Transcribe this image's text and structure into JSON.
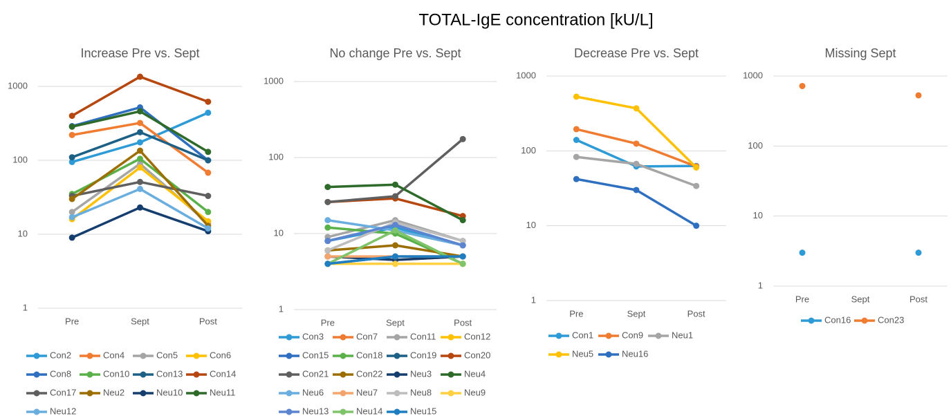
{
  "title": "TOTAL-IgE concentration [kU/L]",
  "chart_data": [
    {
      "type": "line",
      "title": "Increase Pre vs. Sept",
      "categories": [
        "Pre",
        "Sept",
        "Post"
      ],
      "log_scale": true,
      "grid": true,
      "legend": "bottom",
      "ylim": [
        1,
        1000
      ],
      "yticks": [
        1,
        10,
        100,
        1000
      ],
      "series": [
        {
          "name": "Con2",
          "color": "#2e9bd6",
          "values": [
            95,
            175,
            440
          ]
        },
        {
          "name": "Con4",
          "color": "#f07c32",
          "values": [
            220,
            320,
            68
          ]
        },
        {
          "name": "Con5",
          "color": "#a5a5a5",
          "values": [
            20,
            90,
            14
          ]
        },
        {
          "name": "Con6",
          "color": "#ffc000",
          "values": [
            16,
            80,
            15
          ]
        },
        {
          "name": "Con8",
          "color": "#2f6fbf",
          "values": [
            290,
            520,
            100
          ]
        },
        {
          "name": "Con10",
          "color": "#5ab14a",
          "values": [
            35,
            105,
            20
          ]
        },
        {
          "name": "Con13",
          "color": "#1d6086",
          "values": [
            110,
            240,
            100
          ]
        },
        {
          "name": "Con14",
          "color": "#b5470f",
          "values": [
            400,
            1350,
            620
          ]
        },
        {
          "name": "Con17",
          "color": "#5f5f5f",
          "values": [
            33,
            51,
            33
          ]
        },
        {
          "name": "Neu2",
          "color": "#9c6e00",
          "values": [
            30,
            135,
            13
          ]
        },
        {
          "name": "Neu10",
          "color": "#153e6e",
          "values": [
            9,
            23,
            11
          ]
        },
        {
          "name": "Neu11",
          "color": "#2e6b2a",
          "values": [
            285,
            460,
            130
          ]
        },
        {
          "name": "Neu12",
          "color": "#6aaee0",
          "values": [
            17,
            41,
            12
          ]
        }
      ]
    },
    {
      "type": "line",
      "title": "No change Pre vs. Sept",
      "categories": [
        "Pre",
        "Sept",
        "Post"
      ],
      "log_scale": true,
      "grid": true,
      "legend": "bottom",
      "ylim": [
        1,
        1000
      ],
      "yticks": [
        1,
        10,
        100,
        1000
      ],
      "series": [
        {
          "name": "Con3",
          "color": "#2e9bd6",
          "values": [
            8,
            12,
            7
          ]
        },
        {
          "name": "Con7",
          "color": "#f07c32",
          "values": [
            5,
            4.5,
            5
          ]
        },
        {
          "name": "Con11",
          "color": "#a5a5a5",
          "values": [
            9,
            15,
            8
          ]
        },
        {
          "name": "Con12",
          "color": "#ffc000",
          "values": [
            4,
            4,
            4
          ]
        },
        {
          "name": "Con15",
          "color": "#2f6fbf",
          "values": [
            8,
            13,
            7
          ]
        },
        {
          "name": "Con18",
          "color": "#5ab14a",
          "values": [
            12,
            10,
            4
          ]
        },
        {
          "name": "Con19",
          "color": "#1d6086",
          "values": [
            4,
            5,
            5
          ]
        },
        {
          "name": "Con20",
          "color": "#b5470f",
          "values": [
            26,
            29,
            17
          ]
        },
        {
          "name": "Con21",
          "color": "#5f5f5f",
          "values": [
            26,
            31,
            175
          ]
        },
        {
          "name": "Con22",
          "color": "#9c6e00",
          "values": [
            6,
            7,
            5
          ]
        },
        {
          "name": "Neu3",
          "color": "#153e6e",
          "values": [
            5,
            4.5,
            5
          ]
        },
        {
          "name": "Neu4",
          "color": "#2e6b2a",
          "values": [
            41,
            44,
            15
          ]
        },
        {
          "name": "Neu6",
          "color": "#6aaee0",
          "values": [
            15,
            11,
            7
          ]
        },
        {
          "name": "Neu7",
          "color": "#f4a56e",
          "values": [
            5,
            5,
            5
          ]
        },
        {
          "name": "Neu8",
          "color": "#bdbdbd",
          "values": [
            6,
            14,
            8
          ]
        },
        {
          "name": "Neu9",
          "color": "#ffd042",
          "values": [
            4,
            4,
            4
          ]
        },
        {
          "name": "Neu13",
          "color": "#5b86cf",
          "values": [
            8,
            13,
            7
          ]
        },
        {
          "name": "Neu14",
          "color": "#7fc46b",
          "values": [
            4,
            11,
            4
          ]
        },
        {
          "name": "Neu15",
          "color": "#1f7ec1",
          "values": [
            4,
            5,
            5
          ]
        }
      ]
    },
    {
      "type": "line",
      "title": "Decrease Pre vs. Sept",
      "categories": [
        "Pre",
        "Sept",
        "Post"
      ],
      "log_scale": true,
      "grid": true,
      "legend": "bottom",
      "ylim": [
        1,
        1000
      ],
      "yticks": [
        1,
        10,
        100,
        1000
      ],
      "series": [
        {
          "name": "Con1",
          "color": "#2e9bd6",
          "values": [
            140,
            62,
            63
          ]
        },
        {
          "name": "Con9",
          "color": "#f07c32",
          "values": [
            195,
            125,
            62
          ]
        },
        {
          "name": "Neu1",
          "color": "#a5a5a5",
          "values": [
            83,
            67,
            34
          ]
        },
        {
          "name": "Neu5",
          "color": "#ffc000",
          "values": [
            530,
            370,
            60
          ]
        },
        {
          "name": "Neu16",
          "color": "#2f6fbf",
          "values": [
            42,
            30,
            10
          ]
        }
      ]
    },
    {
      "type": "line",
      "title": "Missing Sept",
      "categories": [
        "Pre",
        "Sept",
        "Post"
      ],
      "log_scale": true,
      "grid": true,
      "legend": "bottom",
      "ylim": [
        1,
        1000
      ],
      "yticks": [
        1,
        10,
        100,
        1000
      ],
      "series": [
        {
          "name": "Con16",
          "color": "#2e9bd6",
          "values": [
            3,
            null,
            3
          ]
        },
        {
          "name": "Con23",
          "color": "#f07c32",
          "values": [
            720,
            null,
            530
          ]
        }
      ]
    }
  ]
}
